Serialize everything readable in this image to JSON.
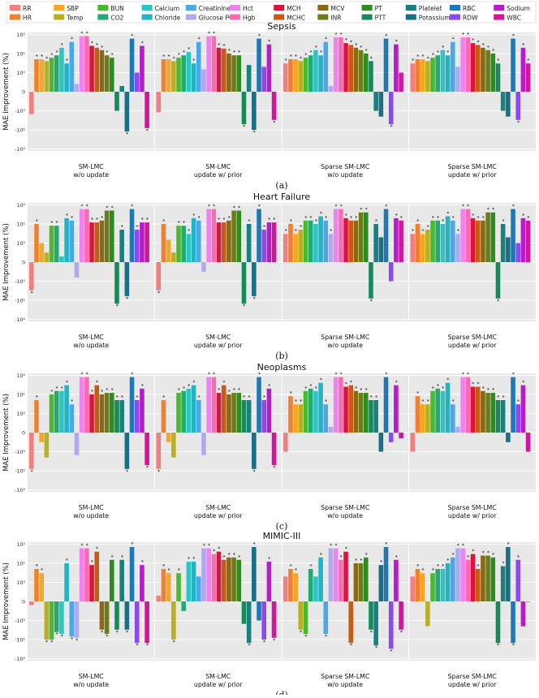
{
  "legend": {
    "entries": [
      {
        "name": "RR",
        "color": "#f08080"
      },
      {
        "name": "SBP",
        "color": "#f5a623"
      },
      {
        "name": "BUN",
        "color": "#4cb830"
      },
      {
        "name": "Calcium",
        "color": "#2ec4c4"
      },
      {
        "name": "Creatinine",
        "color": "#4aa8e8"
      },
      {
        "name": "Hct",
        "color": "#ee82ee"
      },
      {
        "name": "MCH",
        "color": "#dc143c"
      },
      {
        "name": "MCV",
        "color": "#8b6914"
      },
      {
        "name": "PT",
        "color": "#2e8b22"
      },
      {
        "name": "Platelet",
        "color": "#1a7f7f"
      },
      {
        "name": "RBC",
        "color": "#1f77b4"
      },
      {
        "name": "Sodium",
        "color": "#b81cc8"
      },
      {
        "name": "HR",
        "color": "#f08030"
      },
      {
        "name": "Temp",
        "color": "#b8b020"
      },
      {
        "name": "CO2",
        "color": "#22aa70"
      },
      {
        "name": "Chloride",
        "color": "#22b4c4"
      },
      {
        "name": "Glucose POC",
        "color": "#b0a8f0"
      },
      {
        "name": "Hgb",
        "color": "#ff69b4"
      },
      {
        "name": "MCHC",
        "color": "#c85a14"
      },
      {
        "name": "INR",
        "color": "#6b7d1a"
      },
      {
        "name": "PTT",
        "color": "#168a5a"
      },
      {
        "name": "Potassium",
        "color": "#1a6f86"
      },
      {
        "name": "RDW",
        "color": "#8a4af0"
      },
      {
        "name": "WBC",
        "color": "#d0169a"
      }
    ]
  },
  "chart_data": [
    {
      "type": "bar",
      "title": "Sepsis",
      "caption": "(a)",
      "ylabel": "MAE Improvement (%)",
      "y_scale": "symlog",
      "y_ticks": [
        "10²",
        "10¹",
        "10⁰",
        "0",
        "-10⁰",
        "-10¹",
        "-10²"
      ],
      "categories": [
        "SM-LMC w/o update",
        "SM-LMC update w/ prior",
        "Sparse SM-LMC w/o update",
        "Sparse SM-LMC update w/ prior"
      ],
      "series_order": [
        "RR",
        "HR",
        "SBP",
        "Temp",
        "BUN",
        "CO2",
        "Calcium",
        "Chloride",
        "Creatinine",
        "Glucose POC",
        "Hct",
        "Hgb",
        "MCH",
        "MCHC",
        "MCV",
        "INR",
        "PT",
        "PTT",
        "Platelet",
        "Potassium",
        "RBC",
        "RDW",
        "Sodium",
        "WBC"
      ],
      "values": [
        [
          -1.5,
          5,
          5,
          4,
          6,
          8,
          20,
          3,
          40,
          0.4,
          80,
          80,
          25,
          20,
          15,
          8,
          6,
          -1,
          0.3,
          -12,
          60,
          1,
          25,
          -8
        ],
        [
          -1.2,
          5,
          5,
          4,
          6,
          8,
          12,
          3,
          40,
          1.5,
          80,
          80,
          20,
          18,
          10,
          8,
          8,
          -5,
          2.5,
          -10,
          60,
          2,
          30,
          -3
        ],
        [
          3,
          5,
          5,
          4,
          6,
          8,
          15,
          8,
          40,
          0.3,
          70,
          70,
          35,
          28,
          20,
          15,
          10,
          4,
          -1,
          -2,
          60,
          -5,
          30,
          1
        ],
        [
          3,
          5,
          5,
          4,
          6,
          8,
          15,
          8,
          40,
          2,
          70,
          70,
          35,
          28,
          20,
          15,
          10,
          3,
          -1,
          -2,
          60,
          -3,
          20,
          3
        ]
      ]
    },
    {
      "type": "bar",
      "title": "Heart Failure",
      "caption": "(b)",
      "ylabel": "MAE Improvement (%)",
      "y_scale": "symlog",
      "y_ticks": [
        "10²",
        "10¹",
        "10⁰",
        "0",
        "-10⁰",
        "-10¹",
        "-10²"
      ],
      "categories": [
        "SM-LMC w/o update",
        "SM-LMC update w/ prior",
        "Sparse SM-LMC w/o update",
        "Sparse SM-LMC update w/ prior"
      ],
      "series_order": [
        "RR",
        "HR",
        "SBP",
        "Temp",
        "BUN",
        "CO2",
        "Calcium",
        "Chloride",
        "Creatinine",
        "Glucose POC",
        "Hct",
        "Hgb",
        "MCH",
        "MCHC",
        "MCV",
        "INR",
        "PT",
        "PTT",
        "Platelet",
        "Potassium",
        "RBC",
        "RDW",
        "Sodium",
        "WBC"
      ],
      "values": [
        [
          -3,
          10,
          1,
          0.5,
          8,
          8,
          0.3,
          20,
          15,
          -0.8,
          60,
          60,
          12,
          12,
          15,
          50,
          50,
          -15,
          5,
          -6,
          60,
          5,
          12,
          12
        ],
        [
          -3,
          10,
          1.5,
          0.5,
          8,
          8,
          3,
          20,
          15,
          -0.5,
          60,
          60,
          12,
          12,
          15,
          50,
          50,
          -15,
          10,
          -6,
          60,
          5,
          12,
          12
        ],
        [
          3,
          10,
          3,
          5,
          15,
          15,
          10,
          25,
          15,
          3,
          60,
          60,
          20,
          15,
          15,
          40,
          40,
          -8,
          10,
          2,
          60,
          -1,
          20,
          15
        ],
        [
          3,
          10,
          3,
          5,
          15,
          15,
          10,
          25,
          15,
          3,
          60,
          60,
          20,
          15,
          15,
          40,
          40,
          -8,
          10,
          2,
          60,
          1,
          20,
          15
        ]
      ]
    },
    {
      "type": "bar",
      "title": "Neoplasms",
      "caption": "(c)",
      "ylabel": "MAE Improvement (%)",
      "y_scale": "symlog",
      "y_ticks": [
        "10²",
        "10¹",
        "10⁰",
        "0",
        "-10⁰",
        "-10¹",
        "-10²"
      ],
      "categories": [
        "SM-LMC w/o update",
        "SM-LMC update w/ prior",
        "Sparse SM-LMC w/o update",
        "Sparse SM-LMC update w/ prior"
      ],
      "series_order": [
        "RR",
        "HR",
        "SBP",
        "Temp",
        "BUN",
        "CO2",
        "Calcium",
        "Chloride",
        "Creatinine",
        "Glucose POC",
        "Hct",
        "Hgb",
        "MCH",
        "MCHC",
        "MCV",
        "INR",
        "PT",
        "PTT",
        "Platelet",
        "Potassium",
        "RBC",
        "RDW",
        "Sodium",
        "WBC"
      ],
      "values": [
        [
          -8,
          5,
          -0.5,
          -2,
          10,
          15,
          15,
          30,
          3,
          -1.5,
          80,
          80,
          10,
          30,
          10,
          12,
          12,
          5,
          5,
          -8,
          80,
          5,
          20,
          -5
        ],
        [
          -8,
          5,
          -0.5,
          -2,
          12,
          15,
          20,
          30,
          5,
          -1.5,
          80,
          80,
          12,
          30,
          10,
          12,
          12,
          5,
          5,
          -8,
          80,
          5,
          20,
          -5
        ],
        [
          -1,
          8,
          3,
          3,
          15,
          20,
          15,
          40,
          3,
          0.3,
          80,
          80,
          25,
          30,
          15,
          12,
          12,
          5,
          5,
          -1,
          80,
          -0.5,
          30,
          -0.3
        ],
        [
          -1,
          8,
          3,
          3,
          15,
          20,
          15,
          40,
          3,
          0.3,
          80,
          80,
          25,
          25,
          15,
          12,
          12,
          5,
          5,
          -0.5,
          80,
          3,
          30,
          -1
        ]
      ]
    },
    {
      "type": "bar",
      "title": "MIMIC-III",
      "caption": "(d)",
      "ylabel": "MAE Improvement (%)",
      "y_scale": "symlog",
      "y_ticks": [
        "10²",
        "10¹",
        "10⁰",
        "0",
        "-10⁰",
        "-10¹",
        "-10²"
      ],
      "categories": [
        "SM-LMC w/o update",
        "SM-LMC update w/ prior",
        "Sparse SM-LMC w/o update",
        "Sparse SM-LMC update w/ prior"
      ],
      "series_order": [
        "RR",
        "HR",
        "SBP",
        "Temp",
        "BUN",
        "CO2",
        "Calcium",
        "Chloride",
        "Creatinine",
        "Glucose POC",
        "Hct",
        "Hgb",
        "MCH",
        "MCHC",
        "MCV",
        "INR",
        "PT",
        "PTT",
        "Platelet",
        "Potassium",
        "RBC",
        "RDW",
        "Sodium",
        "WBC"
      ],
      "values": [
        [
          -0.2,
          5,
          3,
          -10,
          -10,
          -4,
          -5,
          10,
          -7,
          -8,
          60,
          60,
          8,
          40,
          -3,
          -5,
          15,
          -3,
          15,
          -3,
          70,
          -15,
          8,
          -15
        ],
        [
          0.3,
          5,
          3,
          -10,
          3,
          -0.5,
          12,
          12,
          2,
          60,
          60,
          30,
          40,
          15,
          20,
          20,
          15,
          -1.5,
          -15,
          70,
          -1,
          -10,
          12,
          -8
        ],
        [
          2,
          5,
          3,
          -3,
          -5,
          5,
          2,
          20,
          -5,
          60,
          60,
          15,
          40,
          -15,
          10,
          10,
          20,
          -3,
          -20,
          8,
          70,
          -30,
          15,
          -3
        ],
        [
          2,
          5,
          3,
          -2,
          3,
          5,
          5,
          10,
          20,
          60,
          60,
          15,
          30,
          5,
          25,
          25,
          20,
          -15,
          7,
          70,
          -15,
          15,
          -2,
          0
        ]
      ]
    }
  ]
}
